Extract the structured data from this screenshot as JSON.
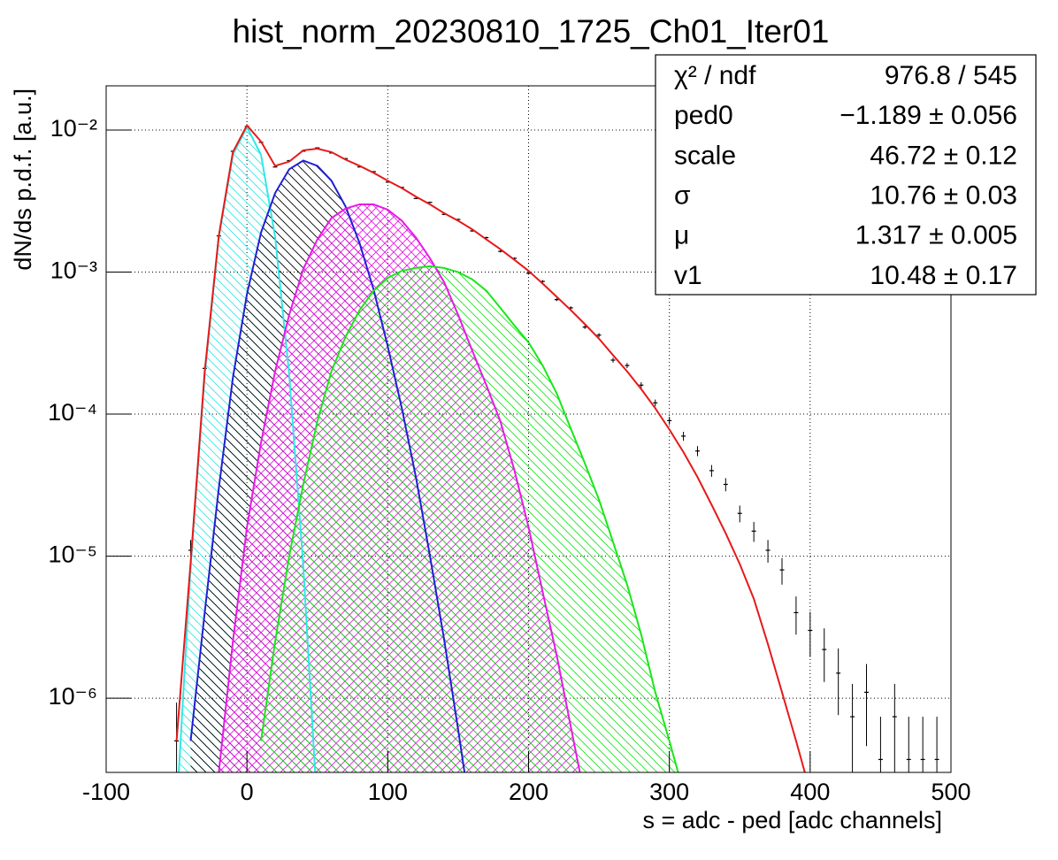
{
  "chart_data": {
    "type": "line",
    "title": "hist_norm_20230810_1725_Ch01_Iter01",
    "x_label": "s = adc - ped [adc channels]",
    "y_label": "dN/ds p.d.f. [a.u.]",
    "log_y": true,
    "grid": true,
    "xlim": [
      -100,
      500
    ],
    "ylim": [
      3e-07,
      0.0205
    ],
    "xticks": [
      -100,
      0,
      100,
      200,
      300,
      400,
      500
    ],
    "yticks": [
      {
        "value": 1e-06,
        "label": "10⁻⁶"
      },
      {
        "value": 1e-05,
        "label": "10⁻⁵"
      },
      {
        "value": 0.0001,
        "label": "10⁻⁴"
      },
      {
        "value": 0.001,
        "label": "10⁻³"
      },
      {
        "value": 0.01,
        "label": "10⁻²"
      }
    ],
    "x": [
      -50,
      -40,
      -30,
      -20,
      -10,
      0,
      10,
      20,
      30,
      40,
      50,
      60,
      70,
      80,
      90,
      100,
      110,
      120,
      130,
      140,
      150,
      160,
      170,
      180,
      190,
      200,
      210,
      220,
      230,
      240,
      250,
      260,
      270,
      280,
      290,
      300,
      310,
      320,
      330,
      340,
      350,
      360,
      370,
      380,
      390,
      400
    ],
    "series": [
      {
        "color": "#33e6e6",
        "fill_color": "#33e6e6",
        "hatch": "diagonal",
        "values": [
          1.6e-07,
          8.5e-06,
          0.00019,
          0.00177,
          0.0067,
          0.0105,
          0.0067,
          0.00177,
          0.00019,
          8.5e-06,
          1.6e-07,
          null,
          null,
          null,
          null,
          null,
          null,
          null,
          null,
          null,
          null,
          null,
          null,
          null,
          null,
          null,
          null,
          null,
          null,
          null,
          null,
          null,
          null,
          null,
          null,
          null,
          null,
          null,
          null,
          null,
          null,
          null,
          null,
          null,
          null,
          null
        ]
      },
      {
        "color": "#1f1fd6",
        "fill_color": "#000000",
        "hatch": "diagonal",
        "values": [
          null,
          5e-07,
          4e-06,
          3e-05,
          0.00018,
          0.0007,
          0.0019,
          0.0036,
          0.0053,
          0.0061,
          0.0056,
          0.0044,
          0.0029,
          0.0016,
          0.00075,
          0.0003,
          0.00011,
          3.6e-05,
          1e-05,
          2.6e-06,
          6e-07,
          1.3e-07,
          null,
          null,
          null,
          null,
          null,
          null,
          null,
          null,
          null,
          null,
          null,
          null,
          null,
          null,
          null,
          null,
          null,
          null,
          null,
          null,
          null,
          null,
          null,
          null
        ]
      },
      {
        "color": "#e61ae6",
        "fill_color": "#e61ae6",
        "hatch": "cross",
        "values": [
          null,
          null,
          null,
          3e-07,
          2.5e-06,
          1.6e-05,
          6.3e-05,
          0.0002,
          0.0005,
          0.00105,
          0.0017,
          0.0024,
          0.0028,
          0.003,
          0.003,
          0.00275,
          0.0023,
          0.00175,
          0.00125,
          0.00085,
          0.0005,
          0.00028,
          0.00016,
          8.9e-05,
          4e-05,
          1.6e-05,
          5.6e-06,
          2e-06,
          6.3e-07,
          2e-07,
          null,
          null,
          null,
          null,
          null,
          null,
          null,
          null,
          null,
          null,
          null,
          null,
          null,
          null,
          null,
          null
        ]
      },
      {
        "color": "#1ae61a",
        "fill_color": "#1ae61a",
        "hatch": "diagonal",
        "values": [
          null,
          null,
          null,
          null,
          null,
          null,
          5e-07,
          2.5e-06,
          1e-05,
          3.2e-05,
          8.9e-05,
          0.0002,
          0.00035,
          0.00054,
          0.00074,
          0.00091,
          0.00102,
          0.00107,
          0.0011,
          0.00107,
          0.001,
          0.00089,
          0.00074,
          0.00056,
          0.00042,
          0.00032,
          0.00022,
          0.00014,
          7.9e-05,
          4.5e-05,
          2.5e-05,
          1.26e-05,
          6.3e-06,
          2.8e-06,
          1.1e-06,
          5e-07,
          2.2e-07,
          null,
          null,
          null,
          null,
          null,
          null,
          null,
          null,
          null
        ]
      },
      {
        "color": "#e61a1a",
        "values": [
          5e-07,
          9e-06,
          0.0002,
          0.0018,
          0.007,
          0.0108,
          0.0083,
          0.0056,
          0.006,
          0.0072,
          0.0074,
          0.007,
          0.0062,
          0.0056,
          0.005,
          0.0044,
          0.0039,
          0.0034,
          0.003,
          0.0026,
          0.0023,
          0.002,
          0.0017,
          0.00145,
          0.00122,
          0.00102,
          0.00083,
          0.00067,
          0.00054,
          0.00043,
          0.00034,
          0.00026,
          0.0002,
          0.00015,
          0.00011,
          7.8e-05,
          5.4e-05,
          3.6e-05,
          2.3e-05,
          1.45e-05,
          8.8e-06,
          5e-06,
          2.4e-06,
          1.1e-06,
          5e-07,
          2.2e-07
        ]
      }
    ],
    "data_points": {
      "color": "#000000",
      "x": [
        -50,
        -40,
        -30,
        -20,
        -10,
        0,
        10,
        20,
        30,
        40,
        50,
        60,
        70,
        80,
        90,
        100,
        110,
        120,
        130,
        140,
        150,
        160,
        170,
        180,
        190,
        200,
        210,
        220,
        230,
        240,
        250,
        260,
        270,
        280,
        290,
        300,
        310,
        320,
        330,
        340,
        350,
        360,
        370,
        380,
        390,
        400,
        410,
        420,
        430,
        440,
        450,
        460,
        470,
        480,
        490
      ],
      "values": [
        5e-07,
        1.1e-05,
        0.00021,
        0.0018,
        0.0071,
        0.0106,
        0.0082,
        0.0055,
        0.0061,
        0.0071,
        0.0075,
        0.0069,
        0.0063,
        0.0055,
        0.0051,
        0.0043,
        0.00395,
        0.0033,
        0.0031,
        0.00255,
        0.00235,
        0.00195,
        0.00175,
        0.0014,
        0.00125,
        0.00098,
        0.00086,
        0.00064,
        0.00056,
        0.00041,
        0.00036,
        0.00024,
        0.00022,
        0.00016,
        0.00012,
        9e-05,
        7e-05,
        5.5e-05,
        4e-05,
        3.2e-05,
        2e-05,
        1.5e-05,
        1.1e-05,
        8e-06,
        4e-06,
        3e-06,
        2.2e-06,
        1.5e-06,
        7.4e-07,
        1.1e-06,
        3.7e-07,
        7.4e-07,
        3.7e-07,
        3.7e-07,
        3.7e-07
      ],
      "errors": [
        4.3e-07,
        2e-06,
        8.8e-06,
        2.6e-05,
        5.1e-05,
        6.3e-05,
        5.5e-05,
        4.5e-05,
        4.8e-05,
        5.1e-05,
        5.3e-05,
        5.1e-05,
        4.8e-05,
        4.5e-05,
        4.3e-05,
        4e-05,
        3.8e-05,
        3.5e-05,
        3.4e-05,
        3.1e-05,
        2.9e-05,
        2.7e-05,
        2.5e-05,
        2.3e-05,
        2.2e-05,
        1.9e-05,
        1.8e-05,
        1.5e-05,
        1.4e-05,
        1.2e-05,
        1.2e-05,
        9.4e-06,
        9e-06,
        7.7e-06,
        6.7e-06,
        5.8e-06,
        5.1e-06,
        4.5e-06,
        3.8e-06,
        3.4e-06,
        2.7e-06,
        2.4e-06,
        2e-06,
        1.7e-06,
        1.2e-06,
        1.05e-06,
        9e-07,
        7.4e-07,
        5.2e-07,
        6.4e-07,
        3.7e-07,
        5.2e-07,
        3.7e-07,
        3.7e-07,
        3.7e-07
      ]
    },
    "stats": [
      {
        "label": "χ² / ndf",
        "value": "976.8 / 545"
      },
      {
        "label": "ped0",
        "value": "−1.189 ± 0.056"
      },
      {
        "label": "scale",
        "value": "46.72 ± 0.12"
      },
      {
        "label": "σ",
        "value": "10.76 ± 0.03"
      },
      {
        "label": "μ",
        "value": "1.317 ± 0.005"
      },
      {
        "label": "v1",
        "value": "10.48 ± 0.17"
      }
    ]
  }
}
